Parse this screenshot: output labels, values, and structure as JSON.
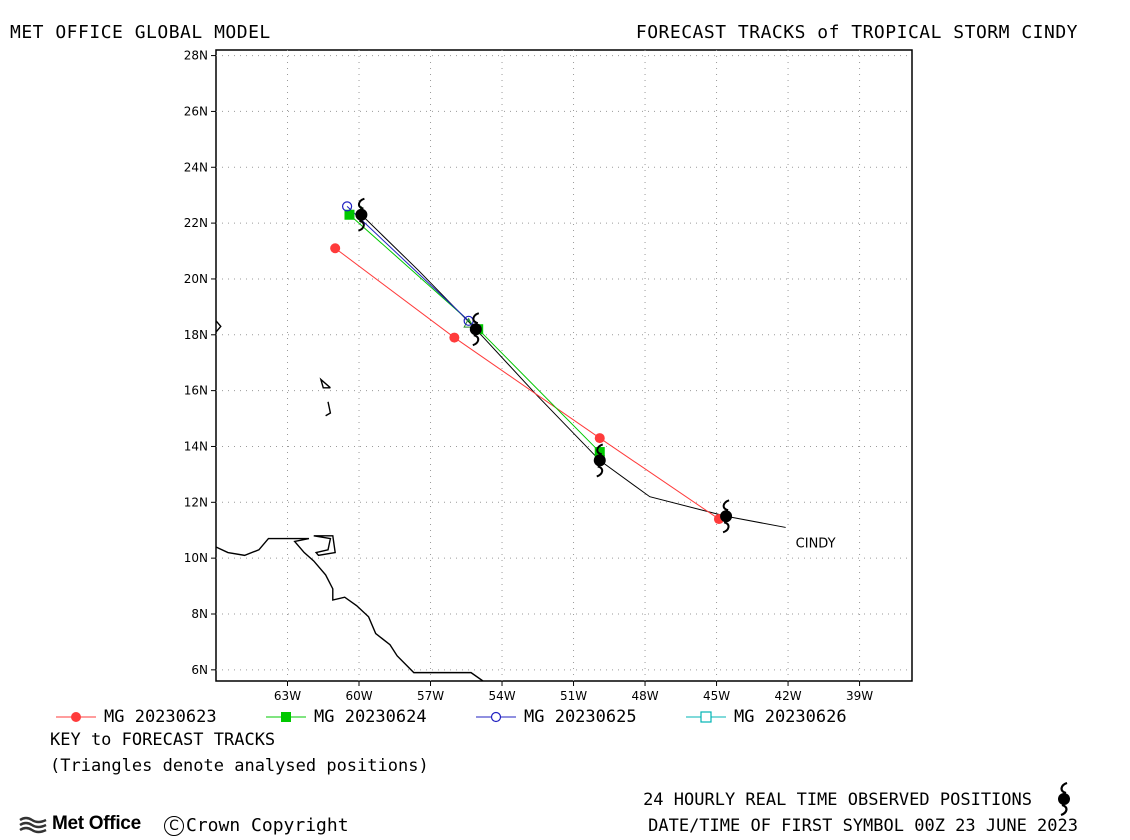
{
  "header": {
    "left_title": "MET OFFICE GLOBAL MODEL",
    "right_title": "FORECAST TRACKS of TROPICAL STORM CINDY"
  },
  "chart_data": {
    "type": "map-tracks",
    "lon_range": [
      -66,
      -36.8
    ],
    "lat_range": [
      5.6,
      28.2
    ],
    "x_ticks": [
      "63W",
      "60W",
      "57W",
      "54W",
      "51W",
      "48W",
      "45W",
      "42W",
      "39W"
    ],
    "x_tick_values": [
      -63,
      -60,
      -57,
      -54,
      -51,
      -48,
      -45,
      -42,
      -39
    ],
    "y_ticks": [
      "6N",
      "8N",
      "10N",
      "12N",
      "14N",
      "16N",
      "18N",
      "20N",
      "22N",
      "24N",
      "26N",
      "28N"
    ],
    "y_tick_values": [
      6,
      8,
      10,
      12,
      14,
      16,
      18,
      20,
      22,
      24,
      26,
      28
    ],
    "grid": true,
    "storm_label": "CINDY",
    "observed_track": {
      "lonlat": [
        [
          -42.1,
          11.1
        ],
        [
          -44.6,
          11.5
        ],
        [
          -47.8,
          12.2
        ],
        [
          -49.9,
          13.5
        ],
        [
          -52.5,
          15.8
        ],
        [
          -55.1,
          18.2
        ],
        [
          -57.5,
          20.3
        ],
        [
          -59.9,
          22.3
        ]
      ],
      "symbols": [
        [
          -44.6,
          11.5
        ],
        [
          -49.9,
          13.5
        ],
        [
          -55.1,
          18.2
        ],
        [
          -59.9,
          22.3
        ]
      ]
    },
    "series": [
      {
        "name": "MG 20230623",
        "color": "#ff3b3b",
        "marker": "filled-circle",
        "points": [
          [
            -44.9,
            11.4
          ],
          [
            -49.9,
            14.3
          ],
          [
            -56.0,
            17.9
          ],
          [
            -61.0,
            21.1
          ]
        ]
      },
      {
        "name": "MG 20230624",
        "color": "#00c800",
        "marker": "filled-square",
        "points": [
          [
            -49.9,
            13.8
          ],
          [
            -55.0,
            18.2
          ],
          [
            -60.4,
            22.3
          ]
        ]
      },
      {
        "name": "MG 20230625",
        "color": "#2020c0",
        "marker": "open-circle",
        "points": [
          [
            -55.4,
            18.5
          ],
          [
            -60.5,
            22.6
          ]
        ]
      },
      {
        "name": "MG 20230626",
        "color": "#00b4b4",
        "marker": "open-square",
        "points": []
      }
    ],
    "analysed_triangles": [
      [
        -49.9,
        13.8
      ],
      [
        -55.4,
        18.4
      ],
      [
        -59.9,
        22.4
      ]
    ]
  },
  "coastlines": [
    [
      [
        -66,
        10.4
      ],
      [
        -65.5,
        10.2
      ],
      [
        -64.8,
        10.1
      ],
      [
        -64.2,
        10.3
      ],
      [
        -63.8,
        10.7
      ],
      [
        -62.9,
        10.7
      ],
      [
        -62.1,
        10.7
      ],
      [
        -62.7,
        10.6
      ],
      [
        -62.3,
        10.2
      ],
      [
        -61.9,
        9.9
      ],
      [
        -61.4,
        9.4
      ],
      [
        -61.1,
        8.9
      ],
      [
        -61.1,
        8.5
      ],
      [
        -60.6,
        8.6
      ],
      [
        -60.1,
        8.3
      ],
      [
        -59.6,
        7.9
      ],
      [
        -59.3,
        7.3
      ],
      [
        -58.7,
        6.9
      ],
      [
        -58.4,
        6.5
      ],
      [
        -57.7,
        5.9
      ],
      [
        -56.9,
        5.9
      ],
      [
        -56.1,
        5.9
      ],
      [
        -55.3,
        5.9
      ],
      [
        -54.8,
        5.6
      ]
    ],
    [
      [
        -61.9,
        10.8
      ],
      [
        -61.1,
        10.8
      ],
      [
        -61.0,
        10.2
      ],
      [
        -61.7,
        10.1
      ],
      [
        -61.8,
        10.2
      ],
      [
        -61.3,
        10.3
      ],
      [
        -61.2,
        10.7
      ],
      [
        -61.9,
        10.8
      ]
    ],
    [
      [
        -61.2,
        16.1
      ],
      [
        -61.6,
        16.4
      ],
      [
        -61.5,
        16.1
      ],
      [
        -61.2,
        16.1
      ]
    ],
    [
      [
        -61.3,
        15.6
      ],
      [
        -61.2,
        15.2
      ],
      [
        -61.4,
        15.1
      ]
    ],
    [
      [
        -66,
        18.1
      ],
      [
        -65.8,
        18.3
      ],
      [
        -66,
        18.5
      ]
    ]
  ],
  "legend": {
    "items": [
      {
        "label": "MG 20230623"
      },
      {
        "label": "MG 20230624"
      },
      {
        "label": "MG 20230625"
      },
      {
        "label": "MG 20230626"
      }
    ],
    "key_title": "KEY to FORECAST TRACKS",
    "key_note": "(Triangles denote analysed positions)"
  },
  "footer": {
    "observed_label": "24 HOURLY REAL TIME OBSERVED POSITIONS",
    "date_line": "DATE/TIME OF FIRST SYMBOL 00Z 23 JUNE 2023",
    "logo_text": "Met Office",
    "copyright_symbol": "C",
    "copyright_text": "Crown Copyright"
  },
  "icons": [
    "hurricane-symbol-icon",
    "met-office-logo-icon",
    "copyright-icon"
  ]
}
